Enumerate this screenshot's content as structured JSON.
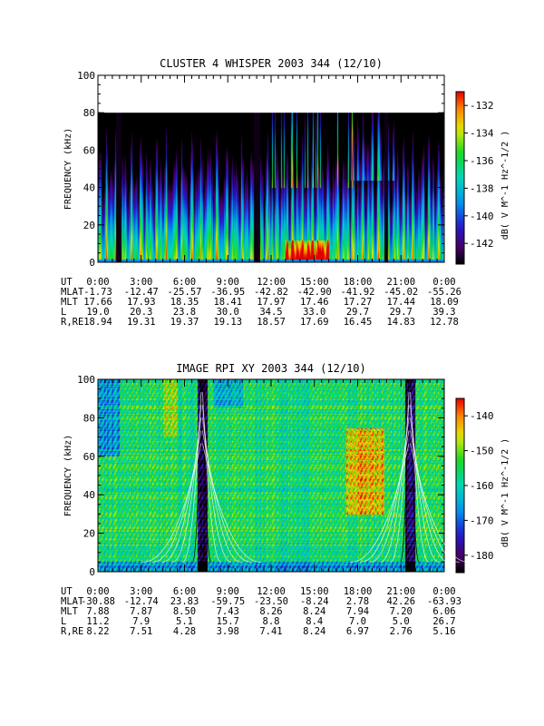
{
  "chart_data": [
    {
      "type": "heatmap",
      "title": "CLUSTER 4 WHISPER 2003 344 (12/10)",
      "ylabel": "FREQUENCY (kHz)",
      "ylim": [
        0,
        100
      ],
      "yticks": [
        "0",
        "20",
        "40",
        "60",
        "80",
        "100"
      ],
      "data_ceiling_khz": 80,
      "xlim": [
        0,
        24
      ],
      "x_unit": "hours UT",
      "colorbar": {
        "label": "dB( V M^-1 Hz^-1/2 )",
        "ticks": [
          "-132",
          "-134",
          "-136",
          "-138",
          "-140",
          "-142"
        ],
        "range": [
          -143.5,
          -131
        ]
      },
      "ephemeris": {
        "labels": [
          "UT",
          "MLAT",
          "MLT",
          "L",
          "R,RE"
        ],
        "ut": [
          "0:00",
          "3:00",
          "6:00",
          "9:00",
          "12:00",
          "15:00",
          "18:00",
          "21:00",
          "0:00"
        ],
        "mlat": [
          "-1.73",
          "-12.47",
          "-25.57",
          "-36.95",
          "-42.82",
          "-42.90",
          "-41.92",
          "-45.02",
          "-55.26"
        ],
        "mlt": [
          "17.66",
          "17.93",
          "18.35",
          "18.41",
          "17.97",
          "17.46",
          "17.27",
          "17.44",
          "18.09"
        ],
        "l": [
          "19.0",
          "20.3",
          "23.8",
          "30.0",
          "34.5",
          "33.0",
          "29.7",
          "29.7",
          "39.3"
        ],
        "r_re": [
          "18.94",
          "19.31",
          "19.37",
          "19.13",
          "18.57",
          "17.69",
          "16.45",
          "14.83",
          "12.78"
        ]
      }
    },
    {
      "type": "heatmap",
      "title": "IMAGE RPI XY 2003 344 (12/10)",
      "ylabel": "FREQUENCY (kHz)",
      "ylim": [
        0,
        100
      ],
      "yticks": [
        "0",
        "20",
        "40",
        "60",
        "80",
        "100"
      ],
      "xlim": [
        0,
        24
      ],
      "x_unit": "hours UT",
      "colorbar": {
        "label": "dB( V M^-1 Hz^-1/2 )",
        "ticks": [
          "-140",
          "-150",
          "-160",
          "-170",
          "-180"
        ],
        "range": [
          -185,
          -135
        ]
      },
      "ephemeris": {
        "labels": [
          "UT",
          "MLAT",
          "MLT",
          "L",
          "R,RE"
        ],
        "ut": [
          "0:00",
          "3:00",
          "6:00",
          "9:00",
          "12:00",
          "15:00",
          "18:00",
          "21:00",
          "0:00"
        ],
        "mlat": [
          "-30.88",
          "-12.74",
          "23.83",
          "-59.75",
          "-23.50",
          "-8.24",
          "2.78",
          "42.26",
          "-63.93"
        ],
        "mlt": [
          "7.88",
          "7.87",
          "8.50",
          "7.43",
          "8.26",
          "8.24",
          "7.94",
          "7.20",
          "6.06"
        ],
        "l": [
          "11.2",
          "7.9",
          "5.1",
          "15.7",
          "8.8",
          "8.4",
          "7.0",
          "5.0",
          "26.7"
        ],
        "r_re": [
          "8.22",
          "7.51",
          "4.28",
          "3.98",
          "7.41",
          "8.24",
          "6.97",
          "2.76",
          "5.16"
        ]
      }
    }
  ]
}
